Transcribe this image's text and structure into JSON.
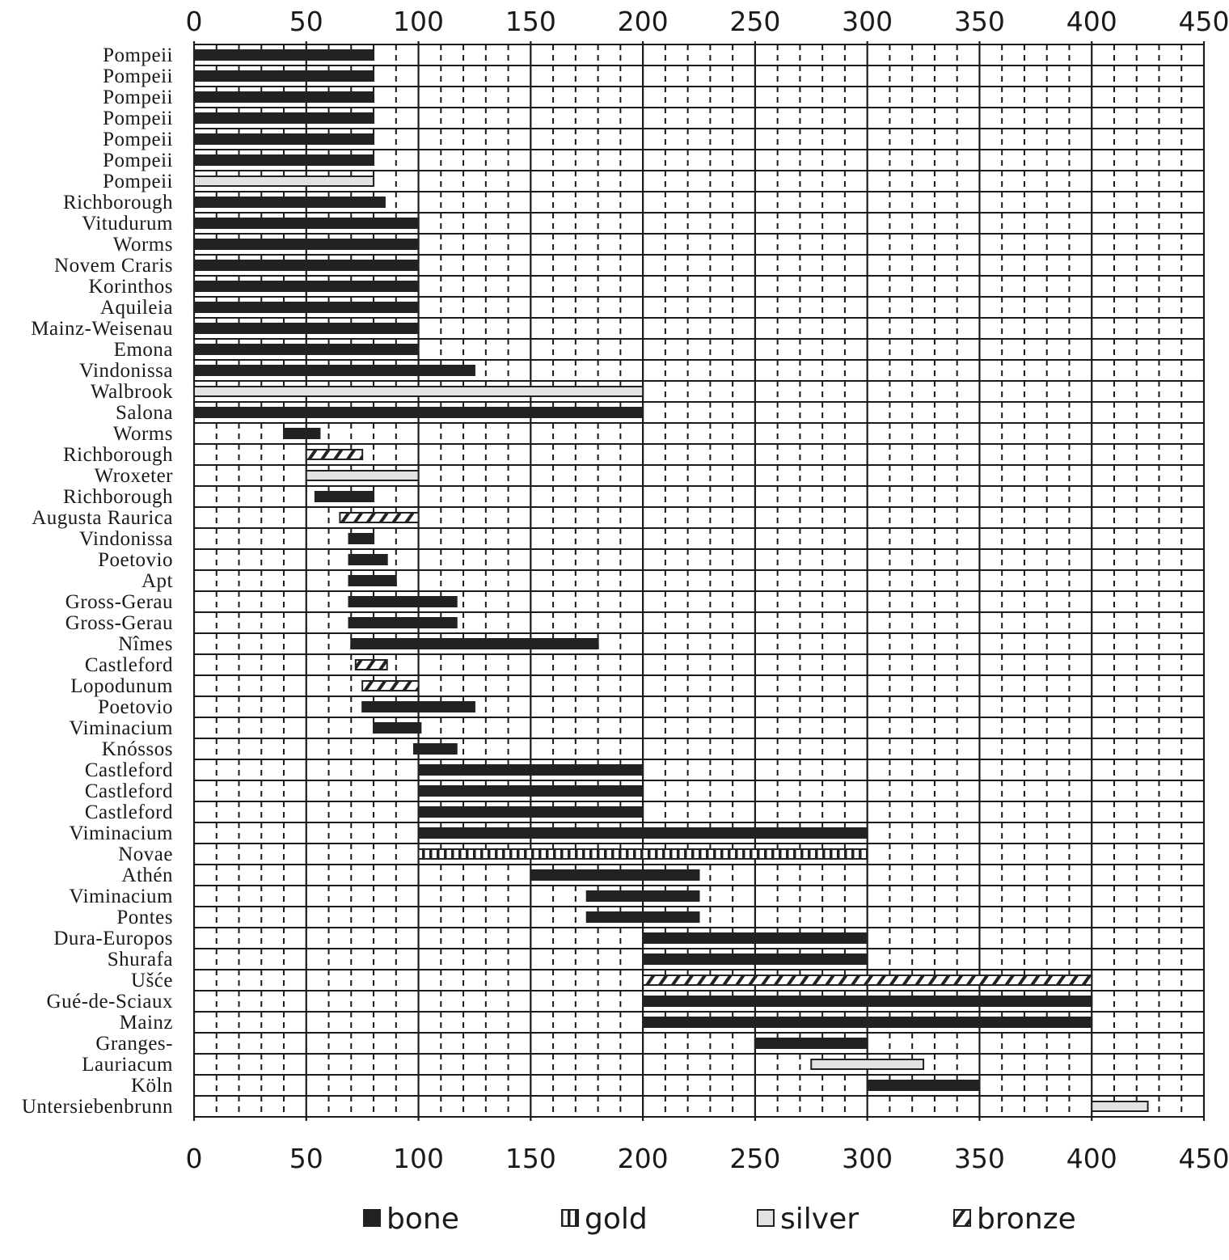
{
  "chart_data": {
    "type": "bar",
    "orientation": "horizontal-range",
    "xlim": [
      0,
      450
    ],
    "xticks": [
      0,
      50,
      100,
      150,
      200,
      250,
      300,
      350,
      400,
      450
    ],
    "xtick_labels": [
      "0",
      "50",
      "100",
      "150",
      "200",
      "250",
      "300",
      "350",
      "400",
      "450"
    ],
    "xaxis_positions": [
      "top",
      "bottom"
    ],
    "grid": {
      "major": "solid",
      "minor": "dashed"
    },
    "legend_placement": "bottom",
    "legend": [
      {
        "key": "bone",
        "label": "bone"
      },
      {
        "key": "gold",
        "label": "gold"
      },
      {
        "key": "silver",
        "label": "silver"
      },
      {
        "key": "bronze",
        "label": "bronze"
      }
    ],
    "colors": {
      "bone": "#222222",
      "gold": "#ffffff",
      "silver": "#e2e2e2",
      "bronze": "#ffffff",
      "grid": "#1a1a1a"
    },
    "rows": [
      {
        "label": "Pompeii",
        "start": 0,
        "end": 80,
        "material": "bone"
      },
      {
        "label": "Pompeii",
        "start": 0,
        "end": 80,
        "material": "bone"
      },
      {
        "label": "Pompeii",
        "start": 0,
        "end": 80,
        "material": "bone"
      },
      {
        "label": "Pompeii",
        "start": 0,
        "end": 80,
        "material": "bone"
      },
      {
        "label": "Pompeii",
        "start": 0,
        "end": 80,
        "material": "bone"
      },
      {
        "label": "Pompeii",
        "start": 0,
        "end": 80,
        "material": "bone"
      },
      {
        "label": "Pompeii",
        "start": 0,
        "end": 80,
        "material": "silver"
      },
      {
        "label": "Richborough",
        "start": 0,
        "end": 85,
        "material": "bone"
      },
      {
        "label": "Vitudurum",
        "start": 0,
        "end": 100,
        "material": "bone"
      },
      {
        "label": "Worms",
        "start": 0,
        "end": 100,
        "material": "bone"
      },
      {
        "label": "Novem Craris",
        "start": 0,
        "end": 100,
        "material": "bone"
      },
      {
        "label": "Korinthos",
        "start": 0,
        "end": 100,
        "material": "bone"
      },
      {
        "label": "Aquileia",
        "start": 0,
        "end": 100,
        "material": "bone"
      },
      {
        "label": "Mainz-Weisenau",
        "start": 0,
        "end": 100,
        "material": "bone"
      },
      {
        "label": "Emona",
        "start": 0,
        "end": 100,
        "material": "bone"
      },
      {
        "label": "Vindonissa",
        "start": 0,
        "end": 125,
        "material": "bone"
      },
      {
        "label": "Walbrook",
        "start": 0,
        "end": 200,
        "material": "silver"
      },
      {
        "label": "Salona",
        "start": 0,
        "end": 200,
        "material": "bone"
      },
      {
        "label": "Worms",
        "start": 40,
        "end": 56,
        "material": "bone"
      },
      {
        "label": "Richborough",
        "start": 50,
        "end": 75,
        "material": "bronze"
      },
      {
        "label": "Wroxeter",
        "start": 50,
        "end": 100,
        "material": "silver"
      },
      {
        "label": "Richborough",
        "start": 54,
        "end": 80,
        "material": "bone"
      },
      {
        "label": "Augusta Raurica",
        "start": 65,
        "end": 100,
        "material": "bronze"
      },
      {
        "label": "Vindonissa",
        "start": 69,
        "end": 80,
        "material": "bone"
      },
      {
        "label": "Poetovio",
        "start": 69,
        "end": 86,
        "material": "bone"
      },
      {
        "label": "Apt",
        "start": 69,
        "end": 90,
        "material": "bone"
      },
      {
        "label": "Gross-Gerau",
        "start": 69,
        "end": 117,
        "material": "bone"
      },
      {
        "label": "Gross-Gerau",
        "start": 69,
        "end": 117,
        "material": "bone"
      },
      {
        "label": "Nîmes",
        "start": 70,
        "end": 180,
        "material": "bone"
      },
      {
        "label": "Castleford",
        "start": 72,
        "end": 86,
        "material": "bronze"
      },
      {
        "label": "Lopodunum",
        "start": 75,
        "end": 100,
        "material": "bronze"
      },
      {
        "label": "Poetovio",
        "start": 75,
        "end": 125,
        "material": "bone"
      },
      {
        "label": "Viminacium",
        "start": 80,
        "end": 101,
        "material": "bone"
      },
      {
        "label": "Knóssos",
        "start": 98,
        "end": 117,
        "material": "bone"
      },
      {
        "label": "Castleford",
        "start": 100,
        "end": 200,
        "material": "bone"
      },
      {
        "label": "Castleford",
        "start": 100,
        "end": 200,
        "material": "bone"
      },
      {
        "label": "Castleford",
        "start": 100,
        "end": 200,
        "material": "bone"
      },
      {
        "label": "Viminacium",
        "start": 100,
        "end": 300,
        "material": "bone"
      },
      {
        "label": "Novae",
        "start": 100,
        "end": 300,
        "material": "gold"
      },
      {
        "label": "Athén",
        "start": 150,
        "end": 225,
        "material": "bone"
      },
      {
        "label": "Viminacium",
        "start": 175,
        "end": 225,
        "material": "bone"
      },
      {
        "label": "Pontes",
        "start": 175,
        "end": 225,
        "material": "bone"
      },
      {
        "label": "Dura-Europos",
        "start": 200,
        "end": 300,
        "material": "bone"
      },
      {
        "label": "Shurafa",
        "start": 200,
        "end": 300,
        "material": "bone"
      },
      {
        "label": "Ušće",
        "start": 200,
        "end": 400,
        "material": "bronze"
      },
      {
        "label": "Gué-de-Sciaux",
        "start": 200,
        "end": 400,
        "material": "bone"
      },
      {
        "label": "Mainz",
        "start": 200,
        "end": 400,
        "material": "bone"
      },
      {
        "label": "Granges-",
        "start": 250,
        "end": 300,
        "material": "bone"
      },
      {
        "label": "Lauriacum",
        "start": 275,
        "end": 325,
        "material": "silver"
      },
      {
        "label": "Köln",
        "start": 300,
        "end": 350,
        "material": "bone"
      },
      {
        "label": "Untersiebenbrunn",
        "start": 400,
        "end": 425,
        "material": "silver"
      }
    ]
  }
}
